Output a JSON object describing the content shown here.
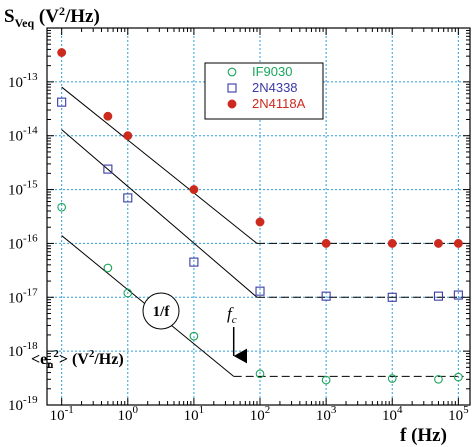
{
  "chart_data": {
    "type": "scatter",
    "title": "",
    "ylabel": "S_Veq (V²/Hz)",
    "ylabel_parts": {
      "base": "S",
      "sub": "Veq",
      "units_pre": " (V",
      "units_sup": "2",
      "units_post": "/Hz)"
    },
    "xlabel": "f (Hz)",
    "x_scale": "log",
    "y_scale": "log",
    "xlim": [
      0.06,
      150000
    ],
    "ylim": [
      1e-19,
      1e-12
    ],
    "grid": true,
    "legend_position": "top-right",
    "x_tick_labels": [
      {
        "x": 0.1,
        "base": "10",
        "exp": "-1"
      },
      {
        "x": 1,
        "base": "10",
        "exp": "0"
      },
      {
        "x": 10,
        "base": "10",
        "exp": "1"
      },
      {
        "x": 100,
        "base": "10",
        "exp": "2"
      },
      {
        "x": 1000,
        "base": "10",
        "exp": "3"
      },
      {
        "x": 10000,
        "base": "10",
        "exp": "4"
      },
      {
        "x": 100000,
        "base": "10",
        "exp": "5"
      }
    ],
    "y_tick_labels": [
      {
        "y": 1e-13,
        "base": "10",
        "exp": "-13"
      },
      {
        "y": 1e-14,
        "base": "10",
        "exp": "-14"
      },
      {
        "y": 1e-15,
        "base": "10",
        "exp": "-15"
      },
      {
        "y": 1e-16,
        "base": "10",
        "exp": "-16"
      },
      {
        "y": 1e-17,
        "base": "10",
        "exp": "-17"
      },
      {
        "y": 1e-18,
        "base": "10",
        "exp": "-18"
      },
      {
        "y": 1e-19,
        "base": "10",
        "exp": "-19"
      }
    ],
    "series": [
      {
        "name": "IF9030",
        "marker": "open-circle",
        "color": "#1aa55a",
        "points": [
          [
            0.1,
            4.7e-16
          ],
          [
            0.5,
            3.5e-17
          ],
          [
            1,
            1.2e-17
          ],
          [
            10,
            1.9e-18
          ],
          [
            100,
            3.8e-19
          ],
          [
            1000,
            2.9e-19
          ],
          [
            10000,
            3.1e-19
          ],
          [
            50000,
            3e-19
          ],
          [
            100000,
            3.3e-19
          ]
        ]
      },
      {
        "name": "2N4338",
        "marker": "open-square",
        "color": "#3a3aa6",
        "points": [
          [
            0.1,
            4.2e-14
          ],
          [
            0.5,
            2.4e-15
          ],
          [
            1,
            7e-16
          ],
          [
            10,
            4.5e-17
          ],
          [
            100,
            1.3e-17
          ],
          [
            1000,
            1.05e-17
          ],
          [
            10000,
            1e-17
          ],
          [
            50000,
            1.05e-17
          ],
          [
            100000,
            1.1e-17
          ]
        ]
      },
      {
        "name": "2N4118A",
        "marker": "filled-circle",
        "color": "#cc2a1e",
        "points": [
          [
            0.1,
            3.5e-13
          ],
          [
            0.5,
            2.3e-14
          ],
          [
            1,
            1e-14
          ],
          [
            10,
            1e-15
          ],
          [
            100,
            2.5e-16
          ],
          [
            1000,
            1e-16
          ],
          [
            10000,
            1e-16
          ],
          [
            50000,
            1e-16
          ],
          [
            100000,
            1e-16
          ]
        ]
      }
    ],
    "fit_lines": [
      {
        "slope_points": [
          [
            0.1,
            8e-14
          ],
          [
            90,
            1e-16
          ]
        ],
        "flat_points": [
          [
            90,
            1e-16
          ],
          [
            120000,
            1e-16
          ]
        ]
      },
      {
        "slope_points": [
          [
            0.1,
            1.3e-14
          ],
          [
            90,
            1e-17
          ]
        ],
        "flat_points": [
          [
            90,
            1e-17
          ],
          [
            120000,
            1e-17
          ]
        ]
      },
      {
        "slope_points": [
          [
            0.1,
            1.4e-16
          ],
          [
            40,
            3.4e-19
          ]
        ],
        "flat_points": [
          [
            40,
            3.4e-19
          ],
          [
            120000,
            3.4e-19
          ]
        ]
      }
    ],
    "annotations": {
      "one_over_f": "1/f",
      "fc_base": "f",
      "fc_sub": "c",
      "fc_x": 40,
      "en_label": {
        "pre": "<e",
        "sub": "n",
        "sup": "2",
        "mid": "> (V",
        "sup2": "2",
        "post": "/Hz)"
      }
    }
  }
}
